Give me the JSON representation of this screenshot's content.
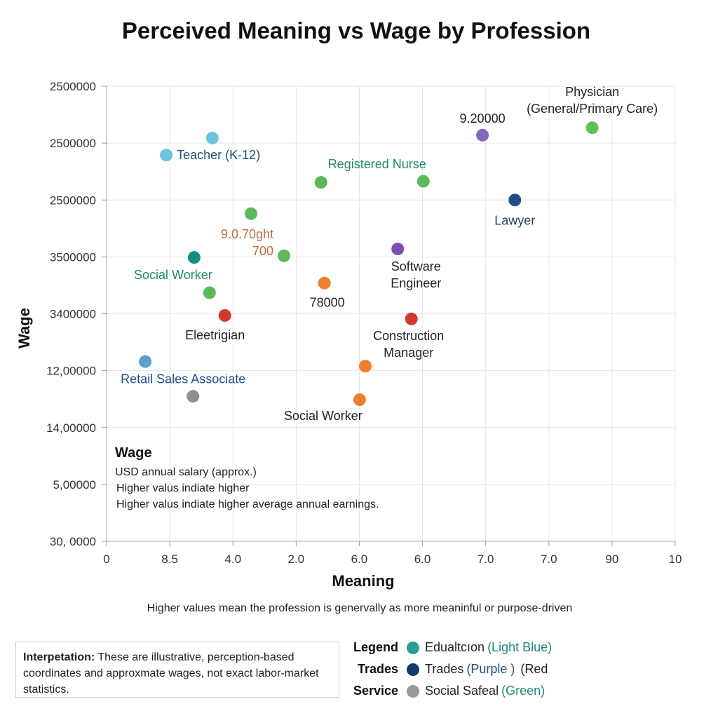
{
  "chart_data": {
    "type": "scatter",
    "title": "Perceived Meaning vs Wage by Profession",
    "xlabel": "Meaning",
    "ylabel": "Wage",
    "x_subtitle": "Higher values mean the profession is genervally as more meaninful or purpose-driven",
    "xlim": [
      0,
      10
    ],
    "ylim": [
      0,
      8
    ],
    "grid": true,
    "xticks": [
      "0",
      "8.5",
      "4.0",
      "2.0",
      "6.0",
      "6.0",
      "7.0",
      "7.0",
      "90",
      "10"
    ],
    "yticks": [
      "30, 0000",
      "5,00000",
      "14,00000",
      "12,00000",
      "3400000",
      "3500000",
      "2500000",
      "2500000",
      "2500000"
    ],
    "points": [
      {
        "x": 1.86,
        "y": 7.09,
        "color": "#6cc3de",
        "label": ""
      },
      {
        "x": 1.05,
        "y": 6.79,
        "color": "#6cc3de",
        "label": "Teacher (K-12)",
        "label_color": "#1f4f7a"
      },
      {
        "x": 3.77,
        "y": 6.31,
        "color": "#5cb85c",
        "label": "Registered Nurse",
        "label_color": "#1f8a6a"
      },
      {
        "x": 5.57,
        "y": 6.33,
        "color": "#5cb85c",
        "label": ""
      },
      {
        "x": 2.54,
        "y": 5.76,
        "color": "#5cb85c",
        "label": ""
      },
      {
        "x": 3.12,
        "y": 5.02,
        "color": "#5cb85c",
        "label": "9.0.70ght",
        "label2": "700",
        "label_color": "#b87040"
      },
      {
        "x": 1.81,
        "y": 4.37,
        "color": "#5cb85c",
        "label": ""
      },
      {
        "x": 1.54,
        "y": 4.99,
        "color": "#138f83",
        "label": "Social Worker",
        "label_color": "#1f8a6a"
      },
      {
        "x": 2.08,
        "y": 3.97,
        "color": "#d0392b",
        "label": "Eleetrigian",
        "label_color": "#222"
      },
      {
        "x": 0.68,
        "y": 3.16,
        "color": "#5aa0c8",
        "label": "Retail Sales Associate",
        "label_color": "#1f4f8a"
      },
      {
        "x": 1.52,
        "y": 2.55,
        "color": "#8e8e93",
        "label": ""
      },
      {
        "x": 3.83,
        "y": 4.54,
        "color": "#ee7f2d",
        "label": "78000",
        "label_color": "#222"
      },
      {
        "x": 4.55,
        "y": 3.08,
        "color": "#ee7f2d",
        "label": ""
      },
      {
        "x": 4.45,
        "y": 2.49,
        "color": "#ee7f2d",
        "label": "Social Worker",
        "label_color": "#222"
      },
      {
        "x": 5.12,
        "y": 5.14,
        "color": "#7b4fb5",
        "label": "Software",
        "label2": "Engineer",
        "label_color": "#222"
      },
      {
        "x": 5.36,
        "y": 3.91,
        "color": "#d0392b",
        "label": "Construction",
        "label2": "Manager",
        "label_color": "#222"
      },
      {
        "x": 6.61,
        "y": 7.14,
        "color": "#8466c0",
        "label": "9.20000",
        "label_color": "#222"
      },
      {
        "x": 8.54,
        "y": 7.27,
        "color": "#5cc05c",
        "label": "Physician",
        "label2": "(General/Primary Care)",
        "label_color": "#222"
      },
      {
        "x": 7.18,
        "y": 6.0,
        "color": "#1f4f8a",
        "label": "Lawyer",
        "label_color": "#1f3f6a"
      }
    ],
    "annotation": {
      "title": "Wage",
      "lines": [
        "USD annual salary (approx.)",
        "Higher valus indiate higher",
        "Higher valus indiate higher average annual earnings."
      ]
    }
  },
  "interpretation": {
    "label": "Interpetation:",
    "text": " These are illustrative, perception-based coordinates and approxmate wages, not exact labor-market statistics."
  },
  "legend": [
    {
      "head": "Legend",
      "color": "#26a08e",
      "name": "Edualtcıon",
      "color_name": "(Light Blue)",
      "color_name_color": "#1f8a7a"
    },
    {
      "head": "Trades",
      "color": "#123a6a",
      "name": "Trades",
      "color_name": "(Purple )",
      "color_name_color": "#1f4f8a",
      "extra": "(Red"
    },
    {
      "head": "Service",
      "color": "#9a9a9a",
      "name": "Social Safeal",
      "color_name": "(Green)",
      "color_name_color": "#1f8a7a"
    }
  ]
}
